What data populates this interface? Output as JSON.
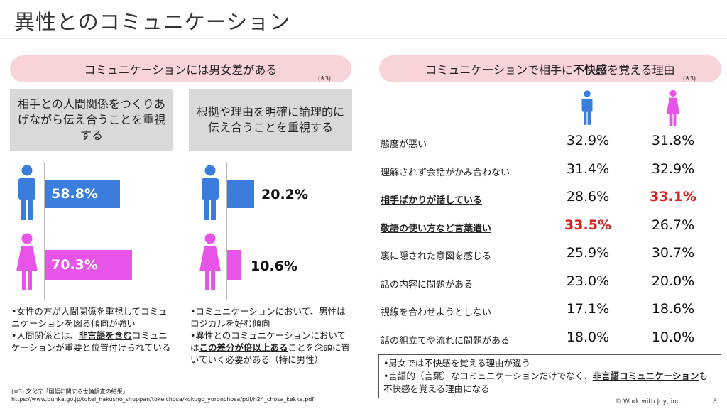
{
  "title": "異性とのコミュニケーション",
  "left": {
    "header": "コミュニケーションには男女差がある",
    "note": "(※3)",
    "col1": {
      "box": "相手との人間関係をつくりあげながら伝え合うことを重視する",
      "male_value": 58.8,
      "male_label": "58.8%",
      "female_value": 70.3,
      "female_label": "70.3%",
      "bullets": [
        {
          "pre": "•女性の方が人間関係を重視してコミュニケーションを図る傾向が強い",
          "em": "",
          "post": ""
        },
        {
          "pre": "•人間関係とは、",
          "em": "非言語を含む",
          "post": "コミュニケーションが重要と位置付けられている"
        }
      ]
    },
    "col2": {
      "box": "根拠や理由を明確に論理的に伝え合うことを重視する",
      "male_value": 20.2,
      "male_label": "20.2%",
      "female_value": 10.6,
      "female_label": "10.6%",
      "bullets": [
        {
          "pre": "•コミュニケーションにおいて、男性はロジカルを好む傾向",
          "em": "",
          "post": ""
        },
        {
          "pre": "•異性とのコミュニケーションにおいては",
          "em": "この差分が倍以上ある",
          "post": "ことを念頭に置いていく必要がある（特に男性）"
        }
      ]
    },
    "source_line1": "(※3) 文化庁「国語に関する世論調査の結果」",
    "source_line2": "https://www.bunka.go.jp/tokei_hakusho_shuppan/tokeichosa/kokugo_yoronchosa/pdf/h24_chosa_kekka.pdf"
  },
  "right": {
    "header_pre": "コミュニケーションで相手に",
    "header_em": "不快感",
    "header_post": "を覚える理由",
    "note": "(※3)",
    "rows": [
      {
        "label": "態度が悪い",
        "male": "32.9%",
        "female": "31.8%",
        "hl": false,
        "male_red": false,
        "female_red": false
      },
      {
        "label": "理解されず会話がかみ合わない",
        "male": "31.4%",
        "female": "32.9%",
        "hl": false,
        "male_red": false,
        "female_red": false
      },
      {
        "label": "相手ばかりが話している",
        "male": "28.6%",
        "female": "33.1%",
        "hl": true,
        "male_red": false,
        "female_red": true
      },
      {
        "label": "敬語の使い方など言葉遣い",
        "male": "33.5%",
        "female": "26.7%",
        "hl": true,
        "male_red": true,
        "female_red": false
      },
      {
        "label": "裏に隠された意図を感じる",
        "male": "25.9%",
        "female": "30.7%",
        "hl": false,
        "male_red": false,
        "female_red": false
      },
      {
        "label": "話の内容に問題がある",
        "male": "23.0%",
        "female": "20.0%",
        "hl": false,
        "male_red": false,
        "female_red": false
      },
      {
        "label": "視線を合わせようとしない",
        "male": "17.1%",
        "female": "18.6%",
        "hl": false,
        "male_red": false,
        "female_red": false
      },
      {
        "label": "話の組立てや流れに問題がある",
        "male": "18.0%",
        "female": "10.0%",
        "hl": false,
        "male_red": false,
        "female_red": false
      }
    ],
    "summary": [
      {
        "pre": "•男女では不快感を覚える理由が違う",
        "em": "",
        "post": ""
      },
      {
        "pre": "•言語的（言葉）なコミュニケーションだけでなく、",
        "em": "非言語コミュニケーション",
        "post": "も不快感を覚える理由になる"
      }
    ]
  },
  "colors": {
    "male": "#3b7ddd",
    "female": "#e854e8",
    "pill": "#f8d3d8",
    "box": "#d9d9d9",
    "red": "#e02020"
  },
  "footer": "© Work with Joy, inc.",
  "page_number": "8"
}
